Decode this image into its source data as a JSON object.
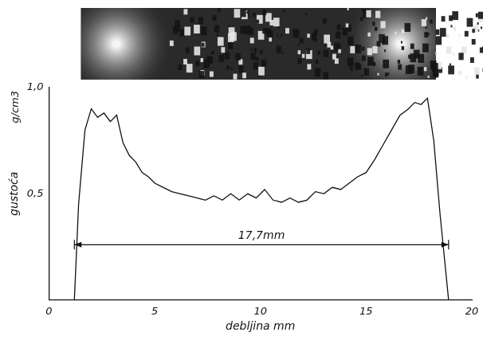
{
  "chart_data": {
    "type": "line",
    "x_label": "debljina mm",
    "y_label": "gustoća",
    "y_unit": "g/cm3",
    "x": [
      1.2,
      1.4,
      1.7,
      2.0,
      2.3,
      2.6,
      2.9,
      3.2,
      3.5,
      3.8,
      4.1,
      4.4,
      4.7,
      5.0,
      5.4,
      5.8,
      6.2,
      6.6,
      7.0,
      7.4,
      7.8,
      8.2,
      8.6,
      9.0,
      9.4,
      9.8,
      10.2,
      10.6,
      11.0,
      11.4,
      11.8,
      12.2,
      12.6,
      13.0,
      13.4,
      13.8,
      14.2,
      14.6,
      15.0,
      15.4,
      15.8,
      16.2,
      16.6,
      17.0,
      17.3,
      17.6,
      17.9,
      18.2,
      18.5,
      18.9
    ],
    "values": [
      0,
      0.45,
      0.8,
      0.9,
      0.86,
      0.88,
      0.84,
      0.87,
      0.74,
      0.68,
      0.65,
      0.6,
      0.58,
      0.55,
      0.53,
      0.51,
      0.5,
      0.49,
      0.48,
      0.47,
      0.49,
      0.47,
      0.5,
      0.47,
      0.5,
      0.48,
      0.52,
      0.47,
      0.46,
      0.48,
      0.46,
      0.47,
      0.51,
      0.5,
      0.53,
      0.52,
      0.55,
      0.58,
      0.6,
      0.66,
      0.73,
      0.8,
      0.87,
      0.9,
      0.93,
      0.92,
      0.95,
      0.75,
      0.4,
      0
    ],
    "color": "#111111",
    "xlim": [
      0,
      20
    ],
    "xticks": [
      0,
      5,
      10,
      15,
      20
    ],
    "ylim": [
      0,
      1.0
    ],
    "yticks": [
      {
        "value": 0.5,
        "label": "0,5"
      },
      {
        "value": 1.0,
        "label": "1,0"
      }
    ],
    "grid": false,
    "annotations": [
      {
        "text": "17,7mm",
        "x": [
          1.2,
          18.9
        ],
        "y": 0.26
      }
    ]
  }
}
